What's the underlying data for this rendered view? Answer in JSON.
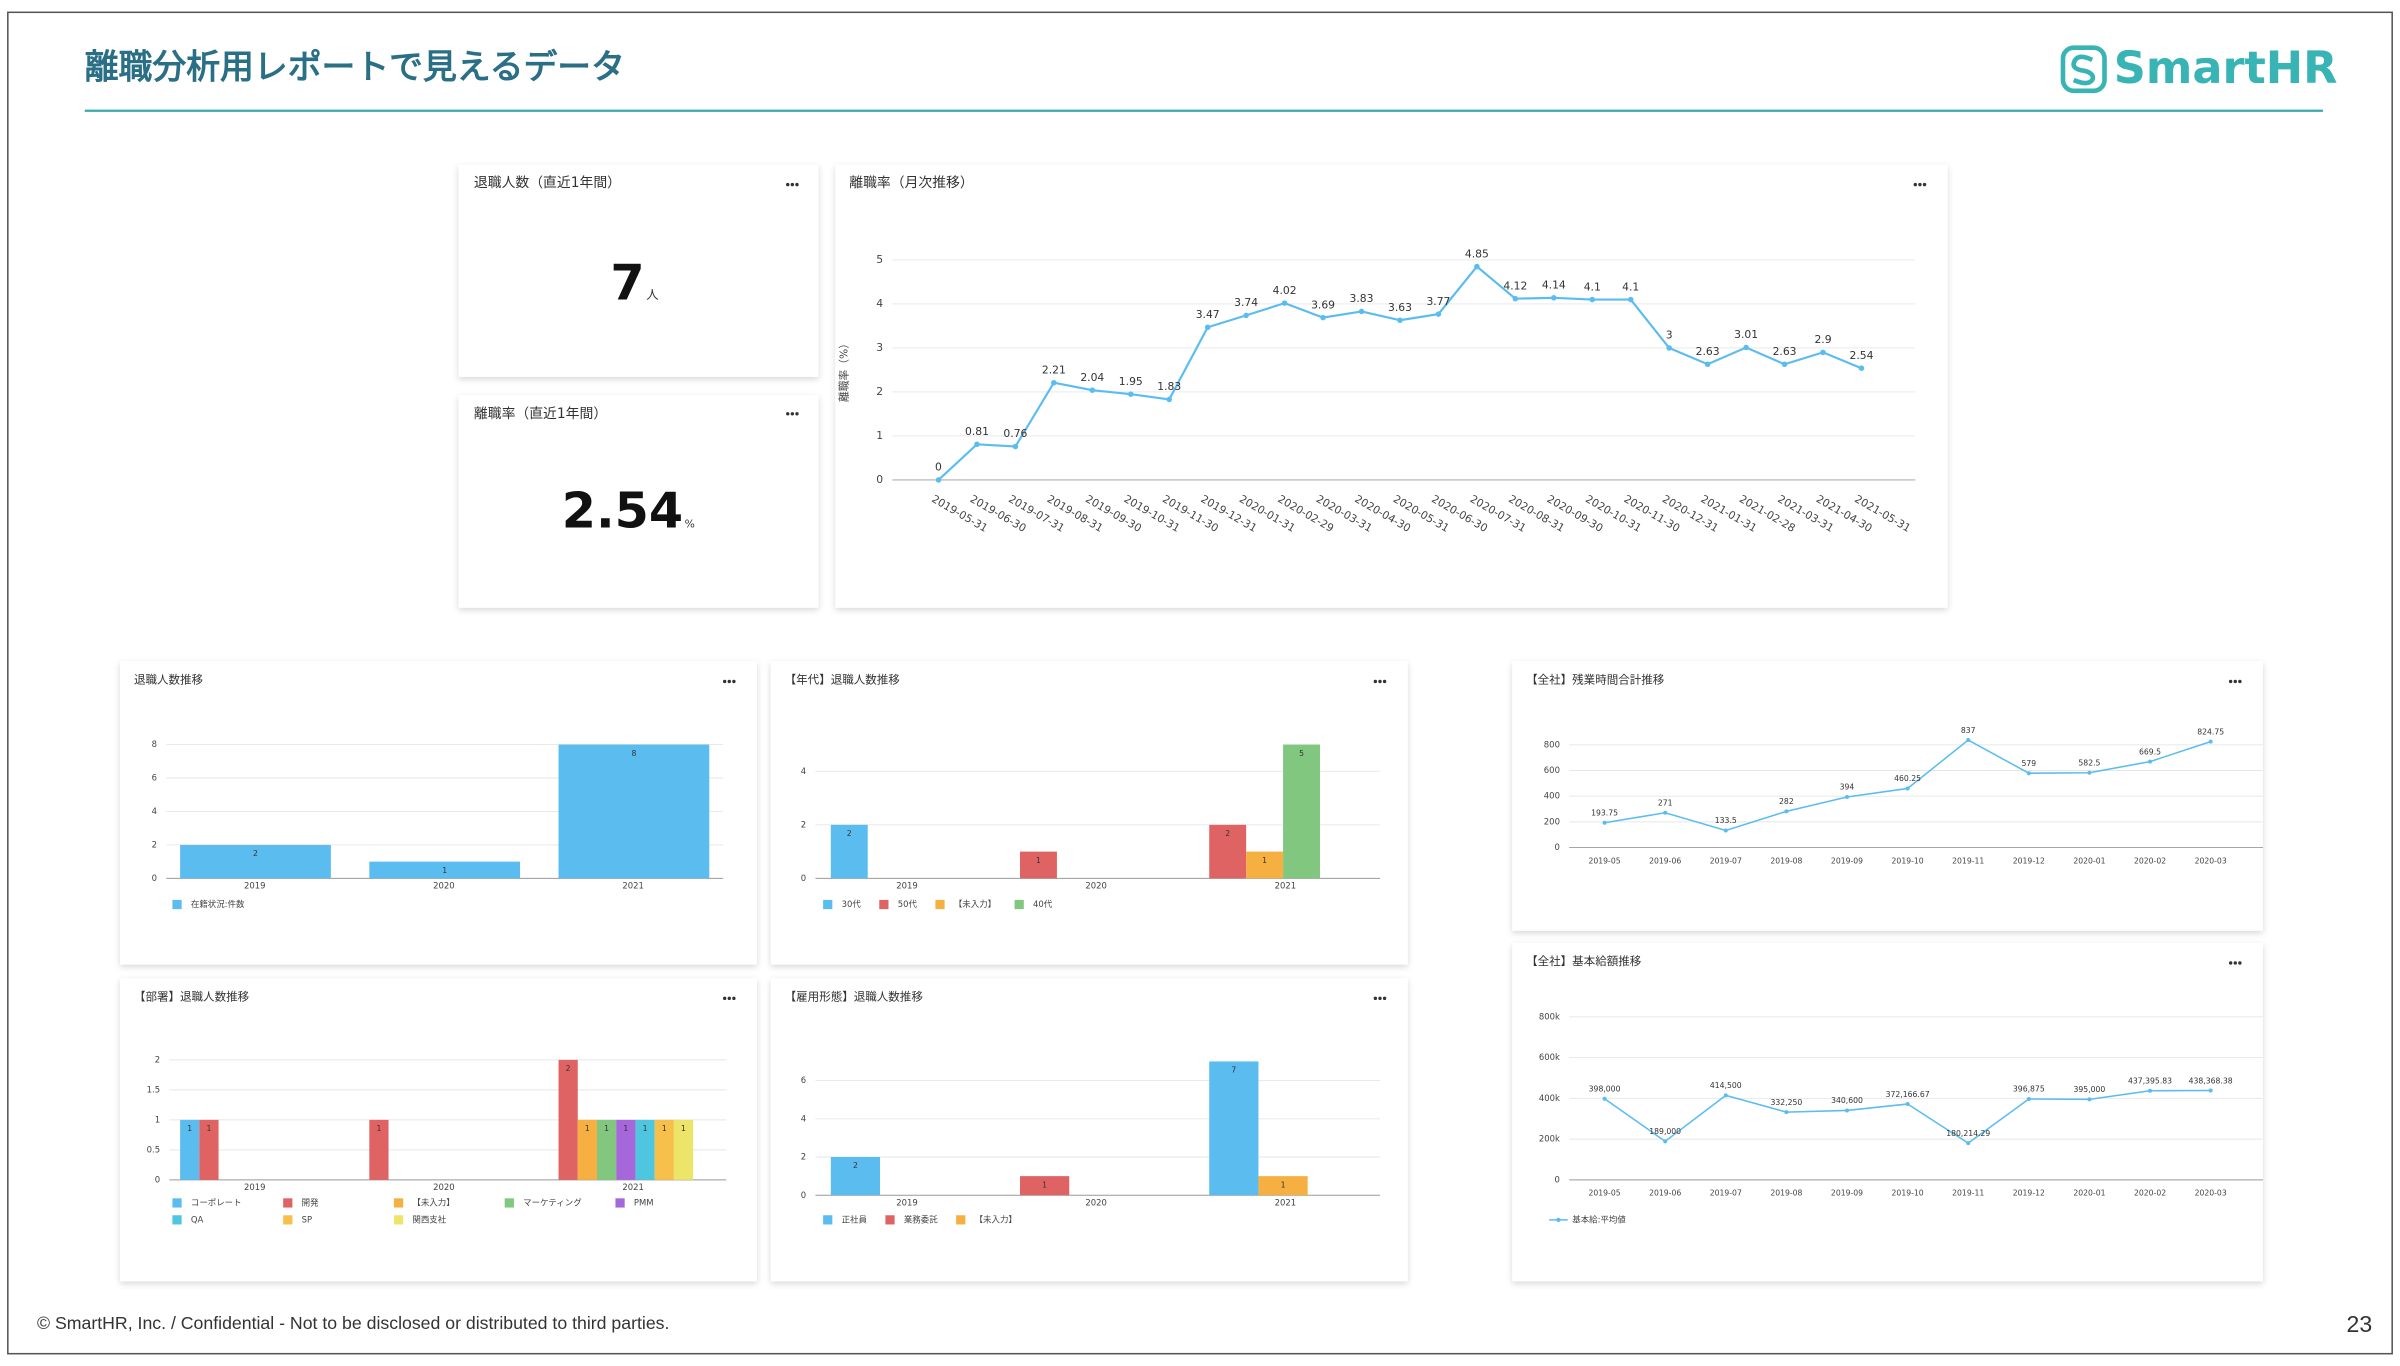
{
  "header": {
    "title": "離職分析用レポートで見えるデータ",
    "logo": "SmartHR"
  },
  "cards": [
    {
      "title": "退職人数（直近1年間）",
      "value": 7,
      "unit": "人"
    },
    {
      "title": "離職率（直近1年間）",
      "value": 2.54,
      "unit": "%"
    }
  ],
  "chart_data": [
    {
      "type": "line",
      "title": "離職率（月次推移）",
      "y_label": "離職率（%）",
      "x": [
        "2019-05-31",
        "2019-06-30",
        "2019-07-31",
        "2019-08-31",
        "2019-09-30",
        "2019-10-31",
        "2019-11-30",
        "2019-12-31",
        "2020-01-31",
        "2020-02-29",
        "2020-03-31",
        "2020-04-30",
        "2020-05-31",
        "2020-06-30",
        "2020-07-31",
        "2020-08-31",
        "2020-09-30",
        "2020-10-31",
        "2020-11-30",
        "2020-12-31",
        "2021-01-31",
        "2021-02-28",
        "2021-03-31",
        "2021-04-30",
        "2021-05-31"
      ],
      "series": [
        {
          "color": "#5bbcf0",
          "values": [
            0,
            0.81,
            0.76,
            2.21,
            2.04,
            1.95,
            1.83,
            3.47,
            3.74,
            4.02,
            3.69,
            3.83,
            3.63,
            3.77,
            4.85,
            4.12,
            4.14,
            4.1,
            4.1,
            3,
            2.63,
            3.01,
            2.63,
            2.9,
            2.54
          ]
        }
      ],
      "ylim": [
        0,
        5
      ],
      "yticks": [
        0,
        1,
        2,
        3,
        4,
        5
      ],
      "grid": true
    },
    {
      "type": "bar",
      "title": "退職人数推移",
      "categories": [
        "2019",
        "2020",
        "2021"
      ],
      "series": [
        {
          "name": "在籍状況:件数",
          "color": "#5bbcf0",
          "values": [
            2,
            1,
            8
          ]
        }
      ],
      "ylim": [
        0,
        8
      ],
      "yticks": [
        0,
        2,
        4,
        6,
        8
      ],
      "grid": true
    },
    {
      "type": "bar",
      "title": "【年代】退職人数推移",
      "categories": [
        "2019",
        "2020",
        "2021"
      ],
      "series": [
        {
          "name": "30代",
          "color": "#5bbcf0",
          "values": [
            2,
            null,
            null
          ]
        },
        {
          "name": "50代",
          "color": "#e06363",
          "values": [
            null,
            1,
            2
          ]
        },
        {
          "name": "【未入力】",
          "color": "#f5b041",
          "values": [
            null,
            null,
            1
          ]
        },
        {
          "name": "40代",
          "color": "#82c77f",
          "values": [
            null,
            null,
            5
          ]
        }
      ],
      "ylim": [
        0,
        5
      ],
      "yticks": [
        0,
        2,
        4
      ],
      "grid": true
    },
    {
      "type": "bar",
      "title": "【部署】退職人数推移",
      "categories": [
        "2019",
        "2020",
        "2021"
      ],
      "series": [
        {
          "name": "コーポレート",
          "color": "#5bbcf0",
          "values": [
            1,
            null,
            null
          ]
        },
        {
          "name": "開発",
          "color": "#e06363",
          "values": [
            1,
            1,
            2
          ]
        },
        {
          "name": "【未入力】",
          "color": "#f5b041",
          "values": [
            null,
            null,
            1
          ]
        },
        {
          "name": "マーケティング",
          "color": "#82c77f",
          "values": [
            null,
            null,
            1
          ]
        },
        {
          "name": "PMM",
          "color": "#a567d9",
          "values": [
            null,
            null,
            1
          ]
        },
        {
          "name": "QA",
          "color": "#4fc6e0",
          "values": [
            null,
            null,
            1
          ]
        },
        {
          "name": "SP",
          "color": "#f7c04a",
          "values": [
            null,
            null,
            1
          ]
        },
        {
          "name": "関西支社",
          "color": "#ede46a",
          "values": [
            null,
            null,
            1
          ]
        }
      ],
      "ylim": [
        0,
        2
      ],
      "yticks": [
        0,
        0.5,
        1,
        1.5,
        2
      ],
      "grid": true
    },
    {
      "type": "bar",
      "title": "【雇用形態】退職人数推移",
      "categories": [
        "2019",
        "2020",
        "2021"
      ],
      "series": [
        {
          "name": "正社員",
          "color": "#5bbcf0",
          "values": [
            2,
            null,
            7
          ]
        },
        {
          "name": "業務委託",
          "color": "#e06363",
          "values": [
            null,
            1,
            null
          ]
        },
        {
          "name": "【未入力】",
          "color": "#f5b041",
          "values": [
            null,
            null,
            1
          ]
        }
      ],
      "ylim": [
        0,
        7
      ],
      "yticks": [
        0,
        2,
        4,
        6
      ],
      "grid": true
    },
    {
      "type": "line",
      "title": "【全社】残業時間合計推移",
      "x": [
        "2019-05",
        "2019-06",
        "2019-07",
        "2019-08",
        "2019-09",
        "2019-10",
        "2019-11",
        "2019-12",
        "2020-01",
        "2020-02",
        "2020-03"
      ],
      "series": [
        {
          "color": "#5bbcf0",
          "values": [
            193.75,
            271,
            133.5,
            282,
            394,
            460.25,
            837,
            579,
            582.5,
            669.5,
            824.75
          ]
        }
      ],
      "ylim": [
        0,
        850
      ],
      "yticks": [
        0,
        200,
        400,
        600,
        800
      ],
      "grid": true
    },
    {
      "type": "line",
      "title": "【全社】基本給額推移",
      "x": [
        "2019-05",
        "2019-06",
        "2019-07",
        "2019-08",
        "2019-09",
        "2019-10",
        "2019-11",
        "2019-12",
        "2020-01",
        "2020-02",
        "2020-03"
      ],
      "series": [
        {
          "name": "基本給:平均値",
          "color": "#5bbcf0",
          "values": [
            398000,
            189000,
            414500,
            332250,
            340600,
            372166.67,
            180214.29,
            396875,
            395000,
            437395.83,
            438368.38
          ],
          "value_labels": [
            "398,000",
            "189,000",
            "414,500",
            "332,250",
            "340,600",
            "372,166.67",
            "180,214.29",
            "396,875",
            "395,000",
            "437,395.83",
            "438,368.38"
          ]
        }
      ],
      "ylim": [
        0,
        800000
      ],
      "yticks": [
        0,
        {
          "value": 200000,
          "label": "200k"
        },
        {
          "value": 400000,
          "label": "400k"
        },
        {
          "value": 600000,
          "label": "600k"
        },
        {
          "value": 800000,
          "label": "800k"
        }
      ],
      "grid": true
    }
  ],
  "footer": {
    "text": "© SmartHR, Inc. / Confidential - Not to be disclosed or distributed to third parties.",
    "page": 23
  }
}
